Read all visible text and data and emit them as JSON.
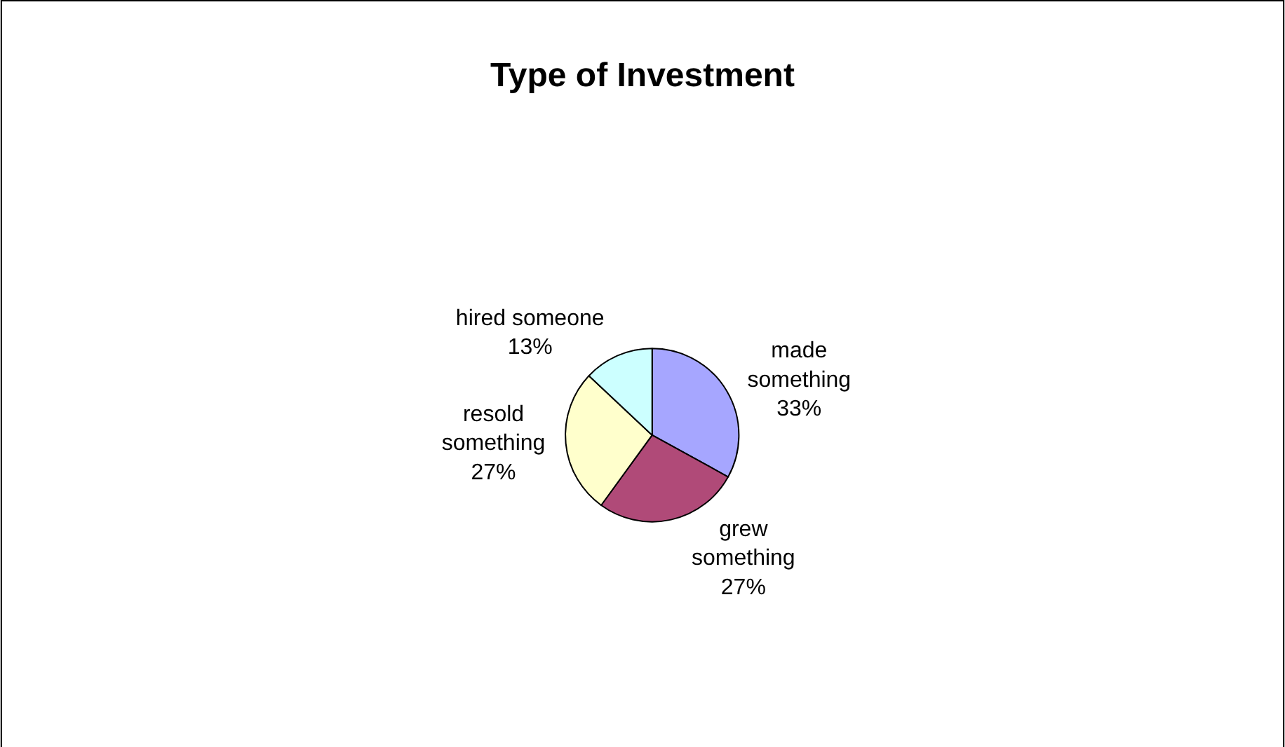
{
  "chart_data": {
    "type": "pie",
    "title": "Type of Investment",
    "categories": [
      "made something",
      "grew something",
      "resold something",
      "hired someone"
    ],
    "values": [
      33,
      27,
      27,
      13
    ],
    "value_labels": [
      "33%",
      "27%",
      "27%",
      "13%"
    ],
    "colors": [
      "#a6a6ff",
      "#b04a78",
      "#ffffcc",
      "#ccffff"
    ],
    "legend": false
  }
}
